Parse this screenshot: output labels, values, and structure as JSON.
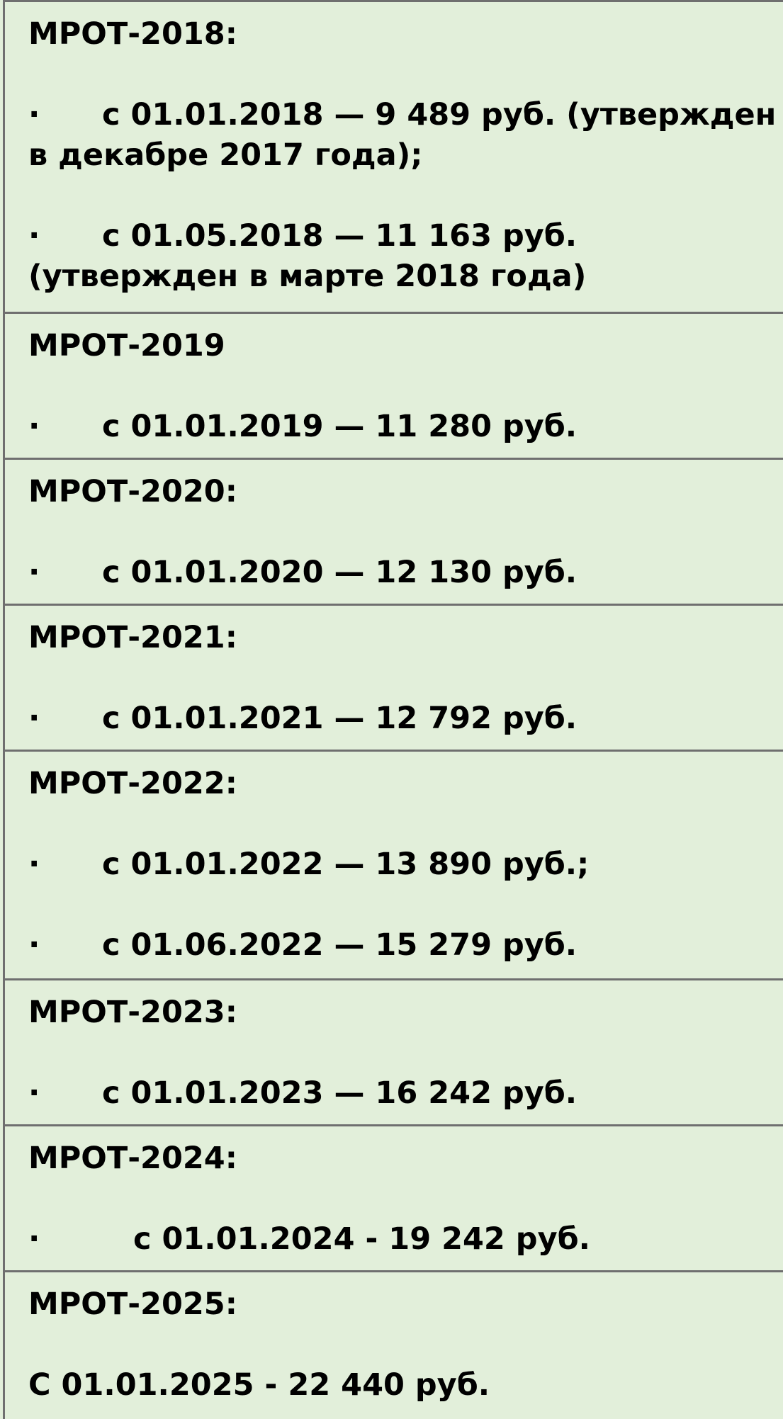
{
  "rows": [
    {
      "title": "МРОТ-2018:",
      "items": [
        {
          "bullet": "·",
          "text": "с 01.01.2018 — 9 489 руб. (утвержден в декабре 2017 года);"
        },
        {
          "bullet": "·",
          "text": "с 01.05.2018 — 11 163 руб. (утвержден в марте 2018 года)"
        }
      ]
    },
    {
      "title": "МРОТ-2019",
      "items": [
        {
          "bullet": "·",
          "text": "с 01.01.2019 — 11 280 руб."
        }
      ]
    },
    {
      "title": "МРОТ-2020:",
      "items": [
        {
          "bullet": "·",
          "text": "с 01.01.2020 — 12 130 руб."
        }
      ]
    },
    {
      "title": "МРОТ-2021:",
      "items": [
        {
          "bullet": "·",
          "text": "с 01.01.2021 — 12 792 руб."
        }
      ]
    },
    {
      "title": "МРОТ-2022:",
      "items": [
        {
          "bullet": "·",
          "text": "с 01.01.2022 — 13 890 руб.;"
        },
        {
          "bullet": "·",
          "text": "с 01.06.2022 — 15 279 руб."
        }
      ]
    },
    {
      "title": "МРОТ-2023:",
      "items": [
        {
          "bullet": "·",
          "text": "с 01.01.2023 — 16 242 руб."
        }
      ]
    },
    {
      "title": "МРОТ-2024:",
      "items": [
        {
          "bullet": "·",
          "text": "с 01.01.2024 - 19 242 руб."
        }
      ]
    },
    {
      "title": "МРОТ-2025:",
      "items": [
        {
          "text": "С 01.01.2025 - 22 440 руб."
        }
      ]
    }
  ],
  "colors": {
    "background": "#e2efda",
    "border": "#6f6f6f",
    "text": "#000000"
  }
}
